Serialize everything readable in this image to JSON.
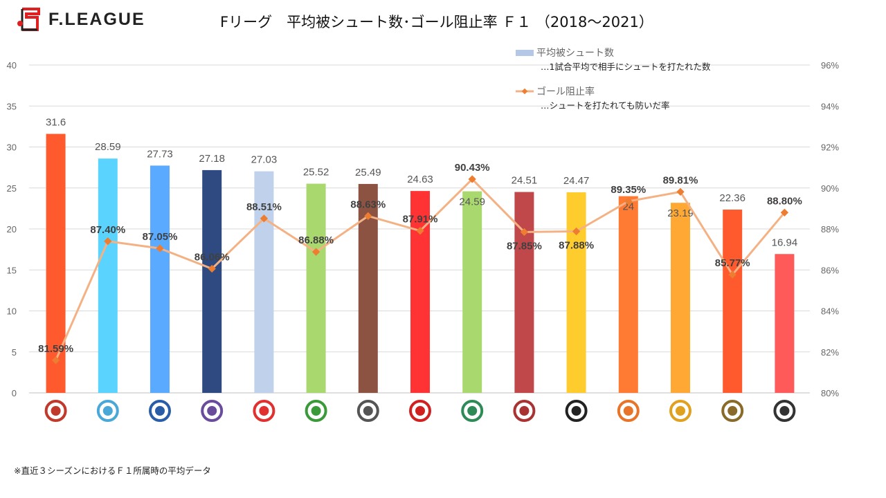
{
  "logo_text": "F.LEAGUE",
  "title": "Fリーグ　平均被シュート数･ゴール阻止率 Ｆ１ （2018〜2021）",
  "legend": {
    "bar_label": "平均被シュート数",
    "bar_desc": "…1試合平均で相手にシュートを打たれた数",
    "line_label": "ゴール阻止率",
    "line_desc": "…シュートを打たれても防いだ率"
  },
  "footnote": "※直近３シーズンにおけるＦ１所属時の平均データ",
  "chart_data": {
    "type": "bar+line",
    "categories_note": "team logos",
    "series": [
      {
        "name": "平均被シュート数",
        "type": "bar",
        "axis": "left",
        "values": [
          31.6,
          28.59,
          27.73,
          27.18,
          27.03,
          25.52,
          25.49,
          24.63,
          24.59,
          24.51,
          24.47,
          24,
          23.19,
          22.36,
          16.94
        ],
        "colors": [
          "#FF5A2E",
          "#5AD4FF",
          "#5AAAFF",
          "#2F4A80",
          "#C0D1EC",
          "#A9D86E",
          "#8C5343",
          "#FF3333",
          "#A9D86E",
          "#C0474A",
          "#FFCC2E",
          "#FF7A33",
          "#FFA833",
          "#FF5A2E",
          "#FF5A5A"
        ]
      },
      {
        "name": "ゴール阻止率",
        "type": "line",
        "axis": "right",
        "color": "#F4B183",
        "marker_color": "#ED7D31",
        "values": [
          81.59,
          87.4,
          87.05,
          86.06,
          88.51,
          86.88,
          88.63,
          87.91,
          90.43,
          87.85,
          87.88,
          89.35,
          89.81,
          85.77,
          88.8
        ],
        "labels": [
          "81.59%",
          "87.40%",
          "87.05%",
          "86.06%",
          "88.51%",
          "86.88%",
          "88.63%",
          "87.91%",
          "90.43%",
          "87.85%",
          "87.88%",
          "89.35%",
          "89.81%",
          "85.77%",
          "88.80%"
        ]
      }
    ],
    "bar_labels": [
      "31.6",
      "28.59",
      "27.73",
      "27.18",
      "27.03",
      "25.52",
      "25.49",
      "24.63",
      "24.59",
      "24.51",
      "24.47",
      "24",
      "23.19",
      "22.36",
      "16.94"
    ],
    "logo_colors": [
      "#C0392B",
      "#4AA8D8",
      "#2A5DA8",
      "#6A4C9C",
      "#E03030",
      "#3A9A3A",
      "#555555",
      "#D02020",
      "#2E8B57",
      "#A93232",
      "#222222",
      "#E8742A",
      "#E0A020",
      "#8A6A2A",
      "#333333"
    ],
    "ylim_left": [
      0,
      40
    ],
    "yticks_left": [
      "0",
      "5",
      "10",
      "15",
      "20",
      "25",
      "30",
      "35",
      "40"
    ],
    "ylim_right": [
      80,
      96
    ],
    "yticks_right": [
      "80%",
      "82%",
      "84%",
      "86%",
      "88%",
      "90%",
      "92%",
      "94%",
      "96%"
    ],
    "grid": true,
    "legend_position": "top-right"
  }
}
